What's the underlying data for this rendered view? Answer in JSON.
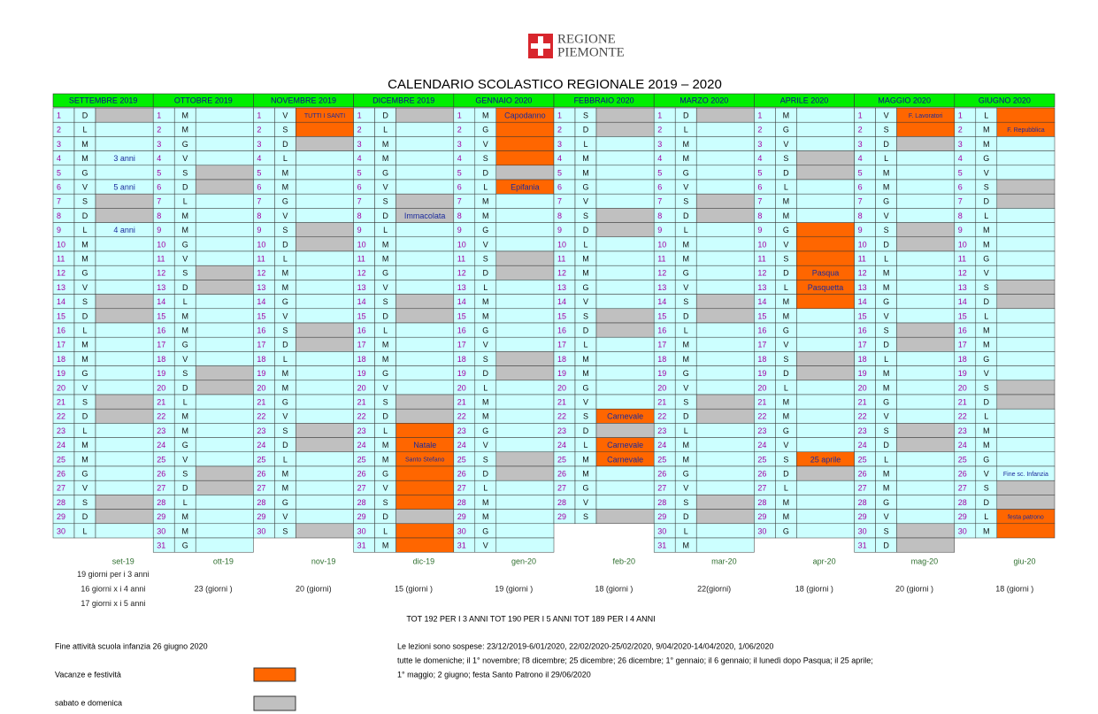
{
  "header": {
    "logo_line1": "REGIONE",
    "logo_line2": "PIEMONTE",
    "title": "CALENDARIO SCOLASTICO REGIONALE 2019 – 2020"
  },
  "legend": [
    {
      "label": "Vacanze e festività",
      "color": "#ff6600"
    },
    {
      "label": "sabato e domenica",
      "color": "#c0c0c0"
    }
  ],
  "months": [
    {
      "name": "SETTEMBRE 2019",
      "footer": "set-19",
      "counts": [
        "19 giorni per i 3 anni",
        "16 giorni x i 4 anni",
        "17 giorni x i 5 anni"
      ],
      "days": [
        1,
        2,
        3,
        4,
        5,
        6,
        7,
        8,
        9,
        10,
        11,
        12,
        13,
        14,
        15,
        16,
        17,
        18,
        19,
        20,
        21,
        22,
        23,
        24,
        25,
        26,
        27,
        28,
        29,
        30
      ],
      "weekdays": [
        "D",
        "L",
        "M",
        "M",
        "G",
        "V",
        "S",
        "D",
        "L",
        "M",
        "M",
        "G",
        "V",
        "S",
        "D",
        "L",
        "M",
        "M",
        "G",
        "V",
        "S",
        "D",
        "L",
        "M",
        "M",
        "G",
        "V",
        "S",
        "D",
        "L"
      ],
      "holidays": [],
      "weekends": [
        1,
        7,
        8,
        14,
        15,
        21,
        22,
        28,
        29
      ],
      "notes": [
        {
          "day": 4,
          "text": "3 anni"
        },
        {
          "day": 6,
          "text": "5 anni"
        },
        {
          "day": 9,
          "text": "4 anni"
        }
      ]
    },
    {
      "name": "OTTOBRE 2019",
      "footer": "ott-19",
      "counts": [
        "23 (giorni )"
      ],
      "days": [
        1,
        2,
        3,
        4,
        5,
        6,
        7,
        8,
        9,
        10,
        11,
        12,
        13,
        14,
        15,
        16,
        17,
        18,
        19,
        20,
        21,
        22,
        23,
        24,
        25,
        26,
        27,
        28,
        29,
        30,
        31
      ],
      "weekdays": [
        "M",
        "M",
        "G",
        "V",
        "S",
        "D",
        "L",
        "M",
        "M",
        "G",
        "V",
        "S",
        "D",
        "L",
        "M",
        "M",
        "G",
        "V",
        "S",
        "D",
        "L",
        "M",
        "M",
        "G",
        "V",
        "S",
        "D",
        "L",
        "M",
        "M",
        "G"
      ],
      "holidays": [],
      "weekends": [
        5,
        6,
        12,
        13,
        19,
        20,
        26,
        27
      ],
      "notes": []
    },
    {
      "name": "NOVEMBRE 2019",
      "footer": "nov-19",
      "counts": [
        "20 (giorni)"
      ],
      "days": [
        1,
        2,
        3,
        4,
        5,
        6,
        7,
        8,
        9,
        10,
        11,
        12,
        13,
        14,
        15,
        16,
        17,
        18,
        19,
        20,
        21,
        22,
        23,
        24,
        25,
        26,
        27,
        28,
        29,
        30
      ],
      "weekdays": [
        "V",
        "S",
        "D",
        "L",
        "M",
        "M",
        "G",
        "V",
        "S",
        "D",
        "L",
        "M",
        "M",
        "G",
        "V",
        "S",
        "D",
        "L",
        "M",
        "M",
        "G",
        "V",
        "S",
        "D",
        "L",
        "M",
        "M",
        "G",
        "V",
        "S"
      ],
      "holidays": [
        1,
        2
      ],
      "weekends": [
        3,
        9,
        10,
        16,
        17,
        23,
        24,
        30
      ],
      "notes": [
        {
          "day": 1,
          "text": "TUTTI I SANTI"
        }
      ]
    },
    {
      "name": "DICEMBRE 2019",
      "footer": "dic-19",
      "counts": [
        "15 (giorni )"
      ],
      "days": [
        1,
        2,
        3,
        4,
        5,
        6,
        7,
        8,
        9,
        10,
        11,
        12,
        13,
        14,
        15,
        16,
        17,
        18,
        19,
        20,
        21,
        22,
        23,
        24,
        25,
        26,
        27,
        28,
        29,
        30,
        31
      ],
      "weekdays": [
        "D",
        "L",
        "M",
        "M",
        "G",
        "V",
        "S",
        "D",
        "L",
        "M",
        "M",
        "G",
        "V",
        "S",
        "D",
        "L",
        "M",
        "M",
        "G",
        "V",
        "S",
        "D",
        "L",
        "M",
        "M",
        "G",
        "V",
        "S",
        "D",
        "L",
        "M"
      ],
      "holidays": [
        23,
        24,
        25,
        26,
        27,
        28,
        30,
        31
      ],
      "weekends": [
        1,
        7,
        8,
        14,
        15,
        21,
        22,
        29
      ],
      "notes": [
        {
          "day": 8,
          "text": "Immacolata"
        },
        {
          "day": 24,
          "text": "Natale"
        },
        {
          "day": 25,
          "text": "Santo Stefano"
        }
      ]
    },
    {
      "name": "GENNAIO 2020",
      "footer": "gen-20",
      "counts": [
        "19 (giorni )"
      ],
      "days": [
        1,
        2,
        3,
        4,
        5,
        6,
        7,
        8,
        9,
        10,
        11,
        12,
        13,
        14,
        15,
        16,
        17,
        18,
        19,
        20,
        21,
        22,
        23,
        24,
        25,
        26,
        27,
        28,
        29,
        30,
        31
      ],
      "weekdays": [
        "M",
        "G",
        "V",
        "S",
        "D",
        "L",
        "M",
        "M",
        "G",
        "V",
        "S",
        "D",
        "L",
        "M",
        "M",
        "G",
        "V",
        "S",
        "D",
        "L",
        "M",
        "M",
        "G",
        "V",
        "S",
        "D",
        "L",
        "M",
        "M",
        "G",
        "V"
      ],
      "holidays": [
        1,
        2,
        3,
        4,
        6
      ],
      "weekends": [
        5,
        11,
        12,
        18,
        19,
        25,
        26
      ],
      "notes": [
        {
          "day": 1,
          "text": "Capodanno"
        },
        {
          "day": 6,
          "text": "Epifania"
        }
      ]
    },
    {
      "name": "FEBBRAIO 2020",
      "footer": "feb-20",
      "counts": [
        "18 (giorni )"
      ],
      "days": [
        1,
        2,
        3,
        4,
        5,
        6,
        7,
        8,
        9,
        10,
        11,
        12,
        13,
        14,
        15,
        16,
        17,
        18,
        19,
        20,
        21,
        22,
        23,
        24,
        25,
        26,
        27,
        28,
        29
      ],
      "weekdays": [
        "S",
        "D",
        "L",
        "M",
        "M",
        "G",
        "V",
        "S",
        "D",
        "L",
        "M",
        "M",
        "G",
        "V",
        "S",
        "D",
        "L",
        "M",
        "M",
        "G",
        "V",
        "S",
        "D",
        "L",
        "M",
        "M",
        "G",
        "V",
        "S"
      ],
      "holidays": [
        22,
        24,
        25
      ],
      "weekends": [
        1,
        2,
        8,
        9,
        15,
        16,
        23,
        29
      ],
      "notes": [
        {
          "day": 22,
          "text": "Carnevale"
        },
        {
          "day": 24,
          "text": "Carnevale"
        },
        {
          "day": 25,
          "text": "Carnevale"
        }
      ]
    },
    {
      "name": "MARZO 2020",
      "footer": "mar-20",
      "counts": [
        "22(giorni)"
      ],
      "days": [
        1,
        2,
        3,
        4,
        5,
        6,
        7,
        8,
        9,
        10,
        11,
        12,
        13,
        14,
        15,
        16,
        17,
        18,
        19,
        20,
        21,
        22,
        23,
        24,
        25,
        26,
        27,
        28,
        29,
        30,
        31
      ],
      "weekdays": [
        "D",
        "L",
        "M",
        "M",
        "G",
        "V",
        "S",
        "D",
        "L",
        "M",
        "M",
        "G",
        "V",
        "S",
        "D",
        "L",
        "M",
        "M",
        "G",
        "V",
        "S",
        "D",
        "L",
        "M",
        "M",
        "G",
        "V",
        "S",
        "D",
        "L",
        "M"
      ],
      "holidays": [],
      "weekends": [
        1,
        7,
        8,
        14,
        15,
        21,
        22,
        28,
        29
      ],
      "notes": []
    },
    {
      "name": "APRILE 2020",
      "footer": "apr-20",
      "counts": [
        "18 (giorni )"
      ],
      "days": [
        1,
        2,
        3,
        4,
        5,
        6,
        7,
        8,
        9,
        10,
        11,
        12,
        13,
        14,
        15,
        16,
        17,
        18,
        19,
        20,
        21,
        22,
        23,
        24,
        25,
        26,
        27,
        28,
        29,
        30
      ],
      "weekdays": [
        "M",
        "G",
        "V",
        "S",
        "D",
        "L",
        "M",
        "M",
        "G",
        "V",
        "S",
        "D",
        "L",
        "M",
        "M",
        "G",
        "V",
        "S",
        "D",
        "L",
        "M",
        "M",
        "G",
        "V",
        "S",
        "D",
        "L",
        "M",
        "M",
        "G"
      ],
      "holidays": [
        9,
        10,
        11,
        12,
        13,
        14,
        25
      ],
      "weekends": [
        4,
        5,
        18,
        19,
        26
      ],
      "notes": [
        {
          "day": 12,
          "text": "Pasqua"
        },
        {
          "day": 13,
          "text": "Pasquetta"
        },
        {
          "day": 25,
          "text": "25 aprile"
        }
      ]
    },
    {
      "name": "MAGGIO 2020",
      "footer": "mag-20",
      "counts": [
        "20 (giorni )"
      ],
      "days": [
        1,
        2,
        3,
        4,
        5,
        6,
        7,
        8,
        9,
        10,
        11,
        12,
        13,
        14,
        15,
        16,
        17,
        18,
        19,
        20,
        21,
        22,
        23,
        24,
        25,
        26,
        27,
        28,
        29,
        30,
        31
      ],
      "weekdays": [
        "V",
        "S",
        "D",
        "L",
        "M",
        "M",
        "G",
        "V",
        "S",
        "D",
        "L",
        "M",
        "M",
        "G",
        "V",
        "S",
        "D",
        "L",
        "M",
        "M",
        "G",
        "V",
        "S",
        "D",
        "L",
        "M",
        "M",
        "G",
        "V",
        "S",
        "D"
      ],
      "holidays": [
        1,
        2
      ],
      "weekends": [
        3,
        9,
        10,
        16,
        17,
        23,
        24,
        30,
        31
      ],
      "notes": [
        {
          "day": 1,
          "text": "F. Lavoratori"
        }
      ]
    },
    {
      "name": "GIUGNO 2020",
      "footer": "giu-20",
      "counts": [
        "18 (giorni )"
      ],
      "days": [
        1,
        2,
        3,
        4,
        5,
        6,
        7,
        8,
        9,
        10,
        11,
        12,
        13,
        14,
        15,
        16,
        17,
        18,
        19,
        20,
        21,
        22,
        23,
        24,
        25,
        26,
        27,
        28,
        29,
        30
      ],
      "weekdays": [
        "L",
        "M",
        "M",
        "G",
        "V",
        "S",
        "D",
        "L",
        "M",
        "M",
        "G",
        "V",
        "S",
        "D",
        "L",
        "M",
        "M",
        "G",
        "V",
        "S",
        "D",
        "L",
        "M",
        "M",
        "G",
        "V",
        "S",
        "D",
        "L",
        "M"
      ],
      "holidays": [
        1,
        2,
        29,
        30
      ],
      "weekends": [
        6,
        7,
        13,
        14,
        20,
        21,
        27,
        28
      ],
      "notes": [
        {
          "day": 2,
          "text": "F. Repubblica"
        },
        {
          "day": 26,
          "text": "Fine sc. Infanzia"
        },
        {
          "day": 29,
          "text": "festa patrono"
        }
      ]
    }
  ],
  "totals": "TOT 192 PER I 3 ANNI    TOT 190 PER I 5 ANNI  TOT 189 PER I 4 ANNI",
  "footnotes": {
    "end": "Fine attività scuola infanzia 26 giugno 2020",
    "lines": [
      "Le lezioni sono sospese:  23/12/2019-6/01/2020, 22/02/2020-25/02/2020, 9/04/2020-14/04/2020, 1/06/2020",
      "tutte le domeniche; il 1° novembre; l'8 dicembre; 25 dicembre; 26 dicembre; 1° gennaio; il 6 gennaio; il lunedì dopo Pasqua; il 25 aprile;",
      "1° maggio; 2 giugno; festa Santo Patrono il 29/06/2020"
    ]
  }
}
